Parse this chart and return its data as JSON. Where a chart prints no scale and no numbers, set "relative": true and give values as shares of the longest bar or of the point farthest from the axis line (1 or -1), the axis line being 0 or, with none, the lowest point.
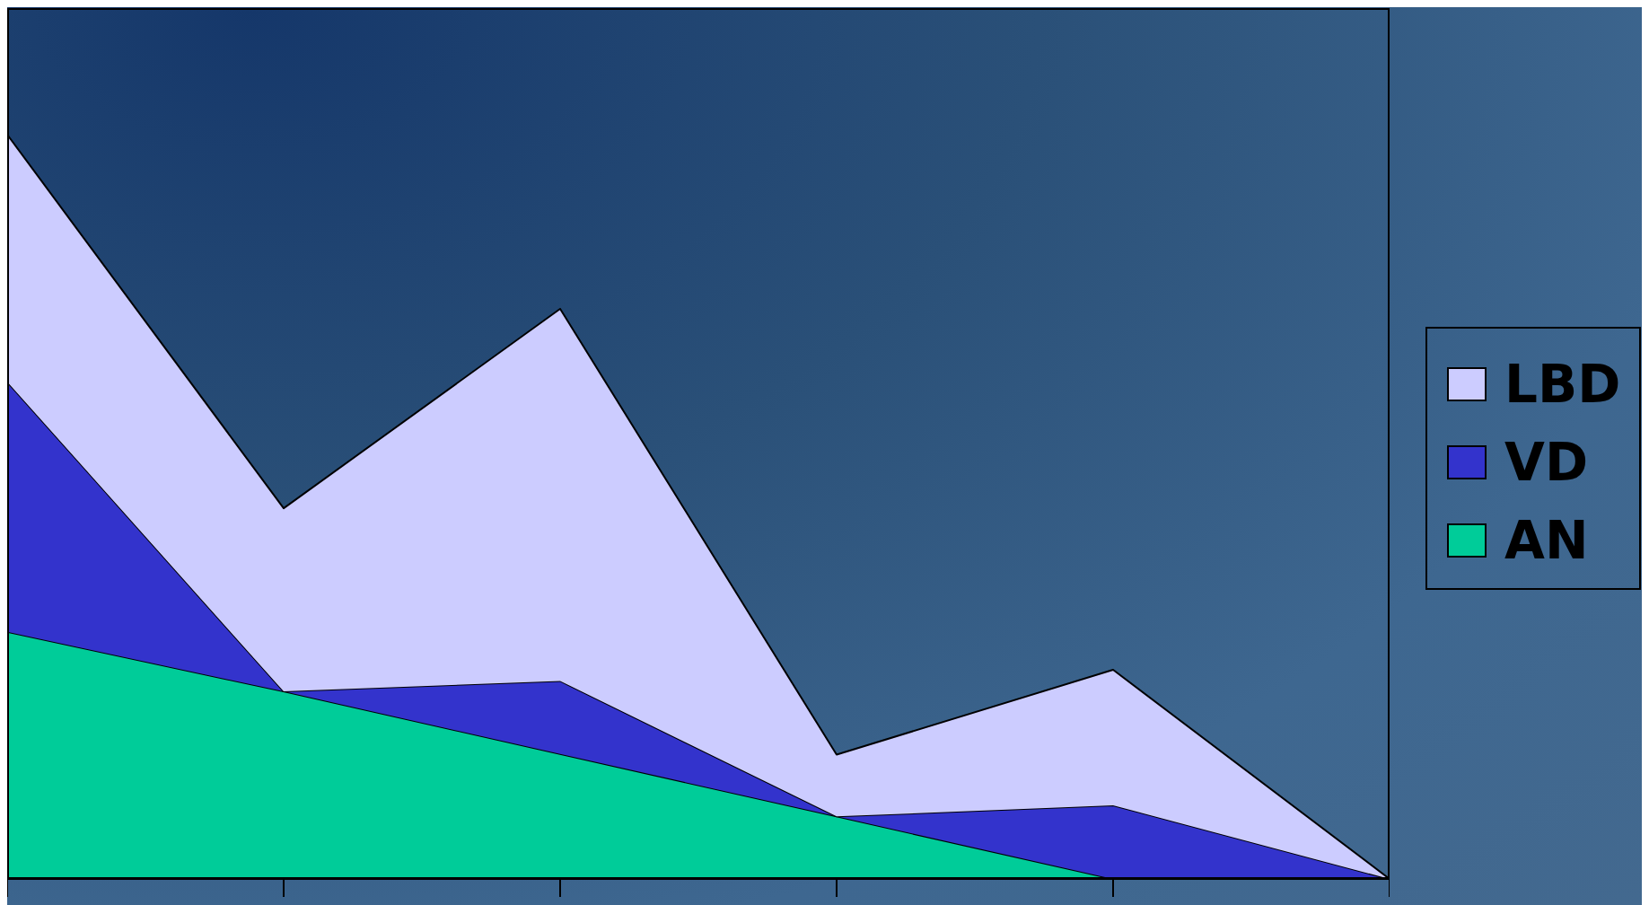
{
  "chart_data": {
    "type": "area",
    "stacked": true,
    "relative": true,
    "categories": [
      null,
      null,
      null,
      null,
      null,
      null
    ],
    "legend": "right",
    "series": [
      {
        "name": "AN",
        "color": "#00cc99",
        "values": [
          0.332,
          0.252,
          0.168,
          0.084,
          0,
          0
        ]
      },
      {
        "name": "VD",
        "color": "#3333cc",
        "values": [
          0.336,
          0,
          0.098,
          0,
          0.099,
          0
        ]
      },
      {
        "name": "LBD",
        "color": "#ccccff",
        "values": [
          0.332,
          0.246,
          0.5,
          0.083,
          0.182,
          0
        ]
      }
    ]
  }
}
